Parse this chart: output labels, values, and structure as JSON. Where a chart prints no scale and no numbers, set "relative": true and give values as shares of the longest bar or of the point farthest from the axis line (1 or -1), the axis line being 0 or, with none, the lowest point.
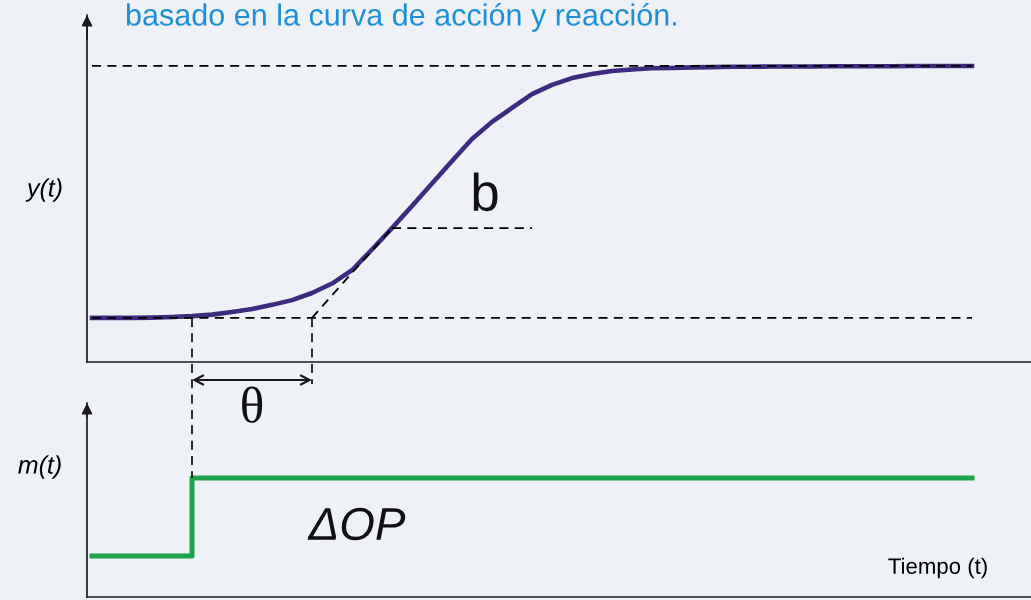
{
  "chart_data": [
    {
      "type": "line",
      "title": "basado en la curva de acción y reacción.",
      "ylabel": "y(t)",
      "annotations": [
        "θ",
        "b"
      ],
      "relative": true,
      "categories": [
        null,
        null,
        null,
        null,
        null,
        null,
        null,
        null,
        null,
        null,
        null,
        null,
        null,
        null,
        null,
        null,
        null,
        null,
        null,
        null,
        null,
        null,
        null,
        null,
        null,
        null,
        null,
        null,
        null,
        null,
        null,
        null,
        null,
        null,
        null,
        null,
        null,
        null,
        null,
        null,
        null,
        null,
        null,
        null,
        null
      ],
      "series": [
        {
          "color": "#3d2b7f",
          "values": [
            0.149,
            0.149,
            0.149,
            0.15,
            0.152,
            0.155,
            0.16,
            0.169,
            0.179,
            0.193,
            0.209,
            0.233,
            0.265,
            0.31,
            0.38,
            0.452,
            0.527,
            0.603,
            0.679,
            0.753,
            0.811,
            0.858,
            0.905,
            0.936,
            0.959,
            0.973,
            0.983,
            0.988,
            0.992,
            0.993,
            0.995,
            0.996,
            0.997,
            0.997,
            0.998,
            0.998,
            0.998,
            0.999,
            0.999,
            0.999,
            0.999,
            1,
            1,
            1,
            1
          ]
        },
        {
          "color": "#000000",
          "line_style": "dashed",
          "values": [
            null,
            null,
            null,
            null,
            null,
            null,
            null,
            null,
            null,
            null,
            null,
            0.149,
            0.225,
            0.301,
            0.376,
            0.452,
            null,
            null,
            null,
            null,
            null,
            null,
            null,
            null,
            null,
            null,
            null,
            null,
            null,
            null,
            null,
            null,
            null,
            null,
            null,
            null,
            null,
            null,
            null,
            null,
            null,
            null,
            null,
            null,
            null
          ]
        },
        {
          "color": "#000000",
          "line_style": "dashed",
          "values": [
            null,
            null,
            null,
            null,
            null,
            null,
            null,
            null,
            null,
            null,
            null,
            null,
            null,
            null,
            null,
            0.452,
            0.452,
            0.452,
            0.452,
            0.452,
            0.452,
            0.452,
            0.452,
            null,
            null,
            null,
            null,
            null,
            null,
            null,
            null,
            null,
            null,
            null,
            null,
            null,
            null,
            null,
            null,
            null,
            null,
            null,
            null,
            null,
            null
          ]
        }
      ],
      "ref_lines": [
        {
          "axis": "y",
          "value": 1,
          "color": "#000000",
          "line_style": "dashed"
        },
        {
          "axis": "y",
          "value": 0.149,
          "color": "#000000",
          "line_style": "dashed"
        }
      ]
    },
    {
      "type": "step",
      "ylabel": "m(t)",
      "xlabel": "Tiempo (t)",
      "annotations": [
        "ΔOP"
      ],
      "relative": true,
      "categories": [
        null,
        null,
        null,
        null,
        null,
        null,
        null,
        null,
        null,
        null,
        null,
        null,
        null,
        null,
        null,
        null,
        null,
        null,
        null,
        null,
        null,
        null,
        null,
        null,
        null,
        null,
        null,
        null,
        null,
        null,
        null,
        null,
        null,
        null,
        null,
        null,
        null,
        null,
        null,
        null,
        null,
        null,
        null,
        null,
        null
      ],
      "series": [
        {
          "color": "#1ea34a",
          "values": [
            0.345,
            0.345,
            0.345,
            0.345,
            0.345,
            1,
            1,
            1,
            1,
            1,
            1,
            1,
            1,
            1,
            1,
            1,
            1,
            1,
            1,
            1,
            1,
            1,
            1,
            1,
            1,
            1,
            1,
            1,
            1,
            1,
            1,
            1,
            1,
            1,
            1,
            1,
            1,
            1,
            1,
            1,
            1,
            1,
            1,
            1,
            1
          ]
        }
      ]
    }
  ]
}
